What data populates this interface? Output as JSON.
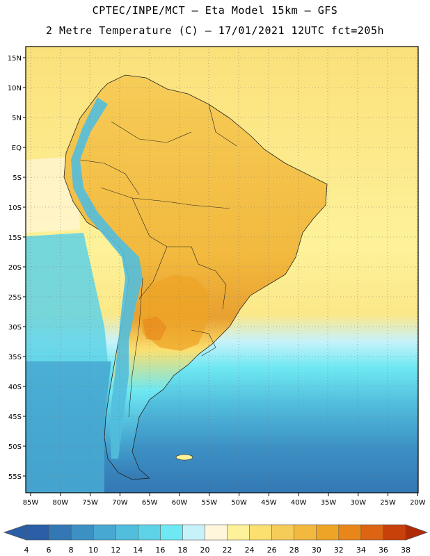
{
  "header": {
    "line1": "CPTEC/INPE/MCT –  Eta Model 15km – GFS",
    "line2": "2 Metre Temperature (C) – 17/01/2021 12UTC fct=205h"
  },
  "axes": {
    "lat_labels": [
      "15N",
      "10N",
      "5N",
      "EQ",
      "5S",
      "10S",
      "15S",
      "20S",
      "25S",
      "30S",
      "35S",
      "40S",
      "45S",
      "50S",
      "55S"
    ],
    "lon_labels": [
      "85W",
      "80W",
      "75W",
      "70W",
      "65W",
      "60W",
      "55W",
      "50W",
      "45W",
      "40W",
      "35W",
      "30W",
      "25W",
      "20W"
    ]
  },
  "colorbar": {
    "values": [
      "4",
      "6",
      "8",
      "10",
      "12",
      "14",
      "16",
      "18",
      "20",
      "22",
      "24",
      "26",
      "28",
      "30",
      "32",
      "34",
      "36",
      "38"
    ],
    "colors": [
      "#2a5ea6",
      "#3378b4",
      "#3c90c4",
      "#47a8d2",
      "#52bedd",
      "#5ed2e6",
      "#6ee8f2",
      "#c8f2fa",
      "#fff6dc",
      "#fdf29a",
      "#fbe070",
      "#f6cc58",
      "#f2b93e",
      "#eea426",
      "#e8861a",
      "#dc6412",
      "#c8400a",
      "#b02a06"
    ]
  },
  "map": {
    "region": "South America",
    "field": "2 Metre Temperature",
    "extent_lon": [
      -86,
      -20
    ],
    "extent_lat": [
      -58,
      16
    ],
    "colors": {
      "ocean_warm": "#fbe07a",
      "ocean_mid": "#fdf29a",
      "ocean_cool": "#5ed2e6",
      "ocean_cold": "#3c90c4",
      "land_hot": "#f2b93e",
      "land_warm": "#f6cc58",
      "andes_cold": "#47a8d2"
    }
  }
}
